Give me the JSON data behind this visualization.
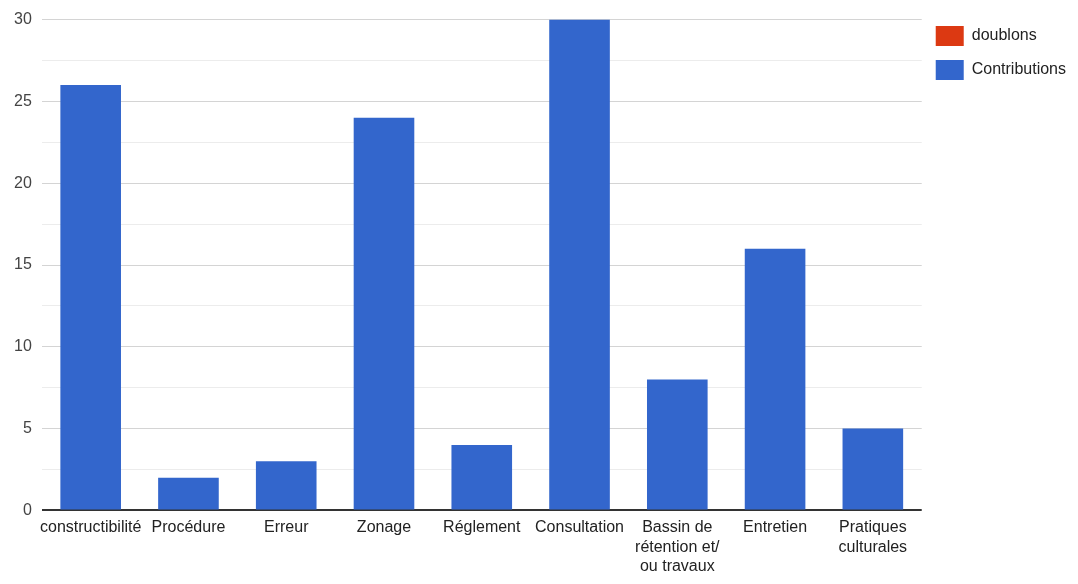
{
  "chart_data": {
    "type": "bar",
    "stacked": true,
    "categories": [
      "constructibilité",
      "Procédure",
      "Erreur",
      "Zonage",
      "Réglement",
      "Consultation",
      "Bassin de rétention et/ ou travaux",
      "Entretien",
      "Pratiques culturales"
    ],
    "series": [
      {
        "name": "Contributions",
        "color": "#3366cc",
        "values": [
          26,
          2,
          3,
          24,
          4,
          30,
          8,
          16,
          5
        ]
      },
      {
        "name": "doublons",
        "color": "#dc3912",
        "values": [
          0,
          0,
          0,
          0,
          0,
          0,
          0,
          0,
          0
        ]
      }
    ],
    "ylim": [
      0,
      30
    ],
    "yticks": [
      0,
      {
        "value": 2.5,
        "label": null
      },
      5,
      {
        "value": 7.5,
        "label": null
      },
      10,
      {
        "value": 12.5,
        "label": null
      },
      15,
      {
        "value": 17.5,
        "label": null
      },
      20,
      {
        "value": 22.5,
        "label": null
      },
      25,
      {
        "value": 27.5,
        "label": null
      },
      30
    ],
    "grid": "y",
    "legend": "top right"
  }
}
